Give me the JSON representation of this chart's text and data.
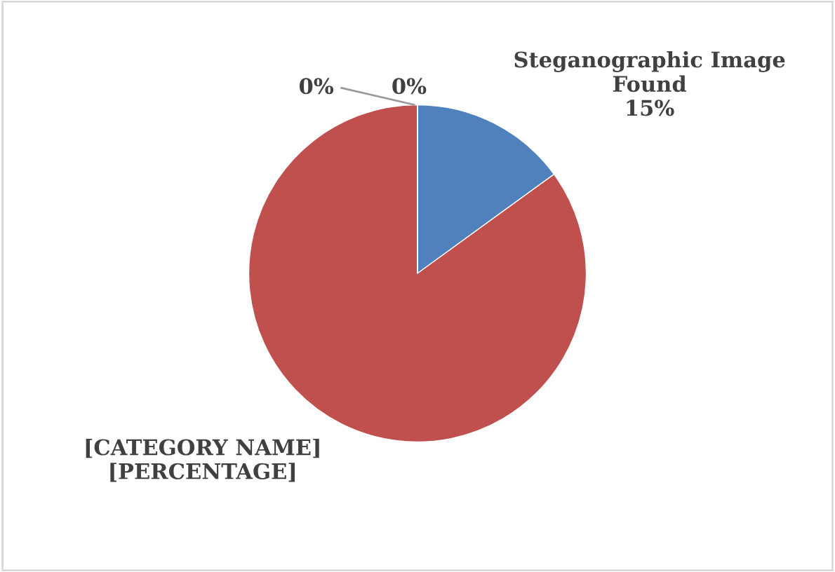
{
  "chart_data": {
    "type": "pie",
    "categories": [
      "Steganographic Image Found",
      "[CATEGORY NAME]",
      null,
      null
    ],
    "values": [
      15,
      85,
      0,
      0
    ],
    "value_labels": [
      "15%",
      "[PERCENTAGE]",
      "0%",
      "0%"
    ],
    "colors": [
      "#4f81bd",
      "#c0504d",
      "#9bbb59",
      "#8064a2"
    ],
    "legend": false
  }
}
